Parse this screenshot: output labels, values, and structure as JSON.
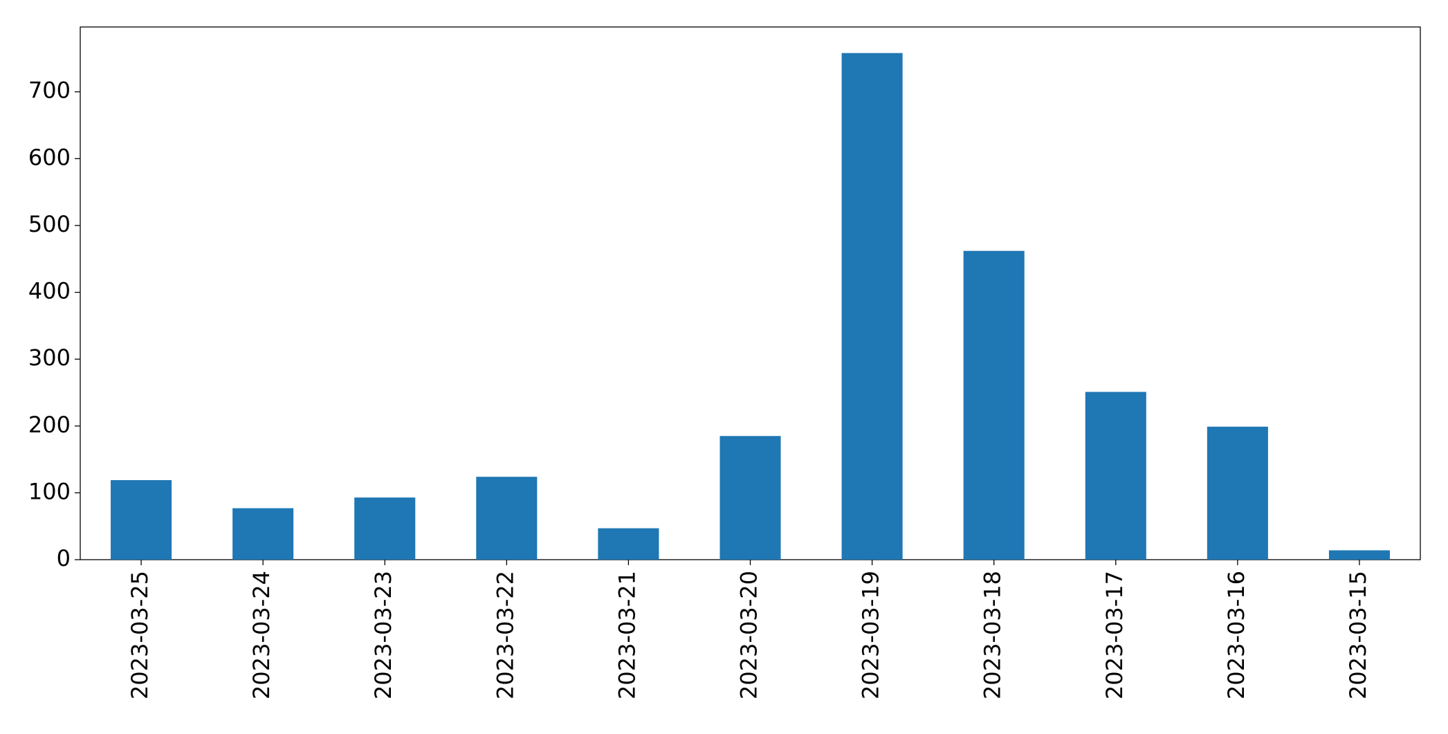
{
  "chart_data": {
    "type": "bar",
    "categories": [
      "2023-03-25",
      "2023-03-24",
      "2023-03-23",
      "2023-03-22",
      "2023-03-21",
      "2023-03-20",
      "2023-03-19",
      "2023-03-18",
      "2023-03-17",
      "2023-03-16",
      "2023-03-15"
    ],
    "values": [
      119,
      77,
      93,
      124,
      47,
      185,
      758,
      462,
      251,
      199,
      14
    ],
    "color": "#1f77b4",
    "ylim": [
      0,
      797
    ],
    "yticks": [
      0,
      100,
      200,
      300,
      400,
      500,
      600,
      700
    ],
    "grid": false
  }
}
